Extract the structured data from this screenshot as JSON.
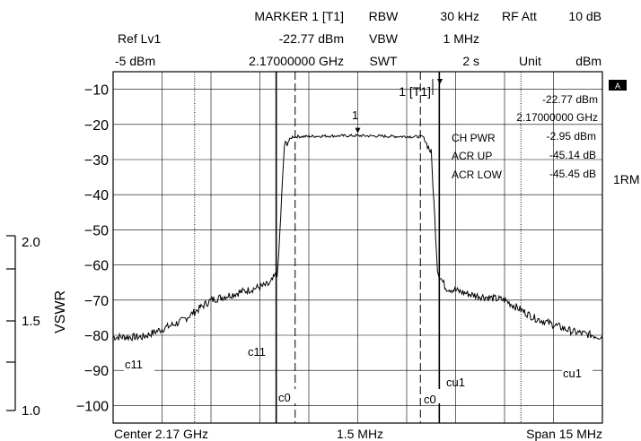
{
  "header": {
    "marker_title": "MARKER 1 [T1]",
    "marker_level": "-22.77 dBm",
    "marker_freq": "2.17000000 GHz",
    "ref_label": "Ref Lv1",
    "ref_value": "-5 dBm",
    "rbw_label": "RBW",
    "rbw_value": "30 kHz",
    "vbw_label": "VBW",
    "vbw_value": "1 MHz",
    "swt_label": "SWT",
    "swt_value": "2 s",
    "rfatt_label": "RF Att",
    "rfatt_value": "10 dB",
    "unit_label": "Unit",
    "unit_value": "dBm"
  },
  "readout": {
    "level": "-22.77 dBm",
    "freq": "2.17000000 GHz",
    "rows": [
      {
        "label": "CH PWR",
        "value": "-2.95 dBm"
      },
      {
        "label": "ACR UP",
        "value": "-45.14 dB"
      },
      {
        "label": "ACR LOW",
        "value": "-45.45 dB"
      }
    ]
  },
  "side_labels": {
    "trace_mode": "1RM",
    "screen": "A"
  },
  "marker_tag": "1 [T1]",
  "marker_number": "1",
  "channel_labels": {
    "c11": "c11",
    "cu1": "cu1",
    "c0": "c0"
  },
  "vswr": {
    "label": "VSWR",
    "ticks": [
      "2.0",
      "1.5",
      "1.0"
    ]
  },
  "chart_data": {
    "type": "line",
    "title": "",
    "xlabel": "",
    "ylabel": "",
    "x_tick_labels": {
      "left": "Center 2.17 GHz",
      "middle": "1.5 MHz",
      "right": "Span 15 MHz"
    },
    "xlim": [
      -7.5,
      7.5
    ],
    "x_unit": "MHz offset from center",
    "ylim": [
      -105,
      -5
    ],
    "y_ticks": [
      -10,
      -20,
      -30,
      -40,
      -50,
      -60,
      -70,
      -80,
      -90,
      -100
    ],
    "grid": true,
    "series": [
      {
        "x": [
          -7.5,
          -6.6,
          -5.4,
          -4.5,
          -3.5,
          -2.7,
          -2.45,
          -2.25,
          -2.0,
          -1.0,
          0.0,
          1.0,
          2.0,
          2.25,
          2.45,
          2.7,
          3.5,
          4.5,
          5.4,
          6.6,
          7.5
        ],
        "y": [
          -80.5,
          -80.5,
          -76,
          -70,
          -67.5,
          -65.5,
          -62,
          -26,
          -23.5,
          -23.3,
          -23.2,
          -23.4,
          -23.5,
          -28,
          -62,
          -66.5,
          -68.5,
          -70,
          -75,
          -79,
          -80.5
        ]
      }
    ],
    "channel_lines_mhz": {
      "c0": [
        -1.92,
        1.92
      ],
      "c11": [
        -2.5,
        2.5
      ],
      "cu1": [
        -5.0,
        5.0
      ]
    },
    "marker": {
      "x_mhz": 0.0,
      "y_dbm": -22.77
    }
  }
}
